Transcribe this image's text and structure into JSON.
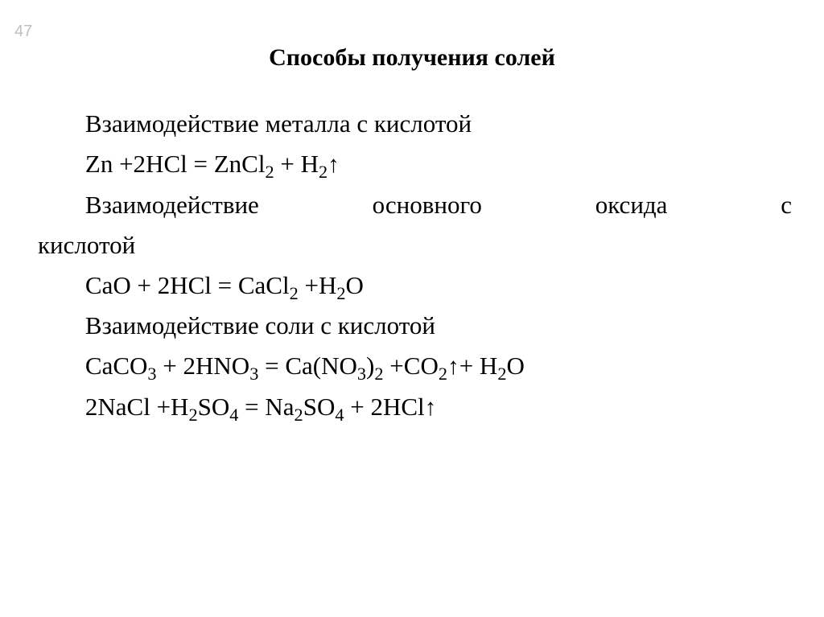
{
  "page": {
    "number": "47",
    "title": "Способы получения солей",
    "font_family": "Times New Roman",
    "title_fontsize": 30,
    "body_fontsize": 31,
    "pagenum_color": "#bfbfbf",
    "text_color": "#000000",
    "background_color": "#ffffff"
  },
  "sections": [
    {
      "heading": "Взаимодействие металла с кислотой",
      "equations": [
        "Zn + 2HCl = ZnCl2 + H2↑"
      ]
    },
    {
      "heading": "Взаимодействие основного оксида с кислотой",
      "equations": [
        "CaO + 2HCl = CaCl2 + H2O"
      ]
    },
    {
      "heading": "Взаимодействие соли с кислотой",
      "equations": [
        "CaCO3 + 2HNO3 = Ca(NO3)2 + CO2↑ + H2O",
        "2NaCl + H2SO4 = Na2SO4 + 2HCl↑"
      ]
    }
  ],
  "text": {
    "h1": "Взаимодействие металла с кислотой",
    "h2a": "Взаимодействие",
    "h2b": "основного",
    "h2c": "оксида",
    "h2d": "с",
    "h2e": "кислотой",
    "h3": "Взаимодействие соли с кислотой"
  }
}
